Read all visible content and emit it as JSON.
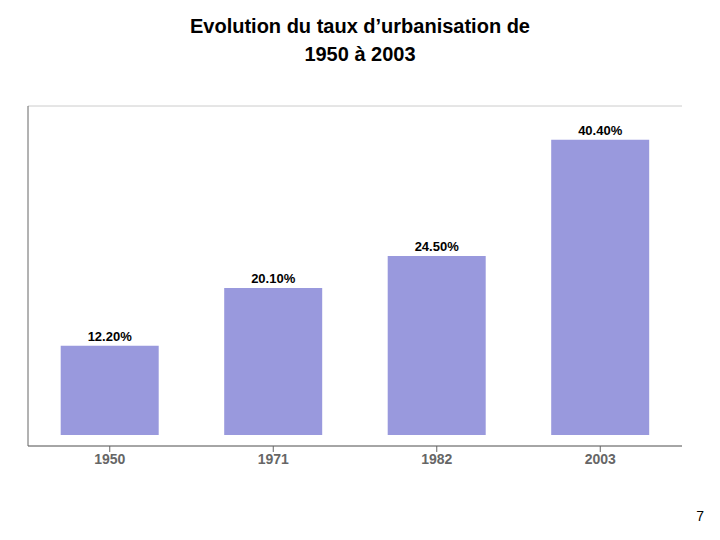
{
  "chart_data": {
    "type": "bar",
    "title": "Evolution du taux d’urbanisation de",
    "subtitle": "1950 à 2003",
    "categories": [
      "1950",
      "1971",
      "1982",
      "2003"
    ],
    "values": [
      12.2,
      20.1,
      24.5,
      40.4
    ],
    "value_labels": [
      "12.20%",
      "20.10%",
      "24.50%",
      "40.40%"
    ],
    "data_labels": true,
    "color": "#9999dd",
    "ylim": [
      -1.5,
      45
    ],
    "yticks": [
      0,
      5,
      10,
      15,
      20,
      25,
      30,
      35,
      40,
      45
    ],
    "grid": true,
    "tick_labels": "x",
    "annotations": [
      "7"
    ]
  }
}
